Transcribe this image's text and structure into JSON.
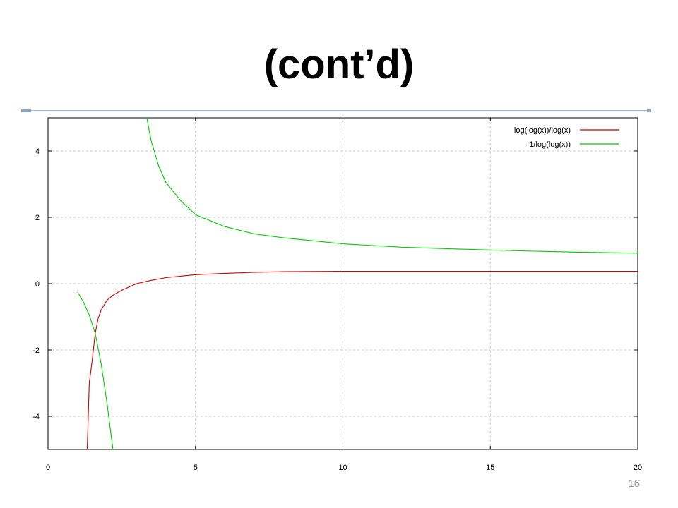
{
  "slide": {
    "title": "(cont’d)",
    "page_number": "16",
    "rule_color": "#a9bcd4"
  },
  "chart_data": {
    "type": "line",
    "title": "",
    "xlabel": "",
    "ylabel": "",
    "xlim": [
      0,
      20
    ],
    "ylim": [
      -5,
      5
    ],
    "xticks": [
      0,
      5,
      10,
      15,
      20
    ],
    "yticks": [
      -4,
      -2,
      0,
      2,
      4
    ],
    "grid": true,
    "legend_position": "top-right",
    "series": [
      {
        "name": "log(log(x))/log(x)",
        "color": "#cc0000",
        "x": [
          1.33,
          1.4,
          1.5,
          1.6,
          1.7,
          1.8,
          2.0,
          2.2,
          2.5,
          3.0,
          3.5,
          4.0,
          5.0,
          6.0,
          7.0,
          8.0,
          10.0,
          12.0,
          14.0,
          16.0,
          18.0,
          20.0
        ],
        "y": [
          -5.0,
          -3.0,
          -2.3,
          -1.5,
          -1.05,
          -0.8,
          -0.5,
          -0.35,
          -0.2,
          -0.0,
          0.1,
          0.18,
          0.27,
          0.31,
          0.34,
          0.36,
          0.37,
          0.37,
          0.37,
          0.37,
          0.37,
          0.37
        ]
      },
      {
        "name": "1/log(log(x))",
        "color": "#00cc00",
        "x": [
          1.0,
          1.2,
          1.4,
          1.6,
          1.8,
          1.9,
          2.0,
          2.1,
          2.2,
          3.35,
          3.5,
          3.75,
          4.0,
          4.5,
          5.0,
          6.0,
          7.0,
          8.0,
          10.0,
          12.0,
          14.0,
          16.0,
          18.0,
          20.0
        ],
        "y": [
          -0.25,
          -0.55,
          -0.95,
          -1.5,
          -2.4,
          -3.0,
          -3.6,
          -4.3,
          -5.0,
          5.0,
          4.3,
          3.55,
          3.05,
          2.5,
          2.08,
          1.72,
          1.5,
          1.38,
          1.2,
          1.1,
          1.04,
          0.99,
          0.95,
          0.92
        ]
      }
    ]
  }
}
